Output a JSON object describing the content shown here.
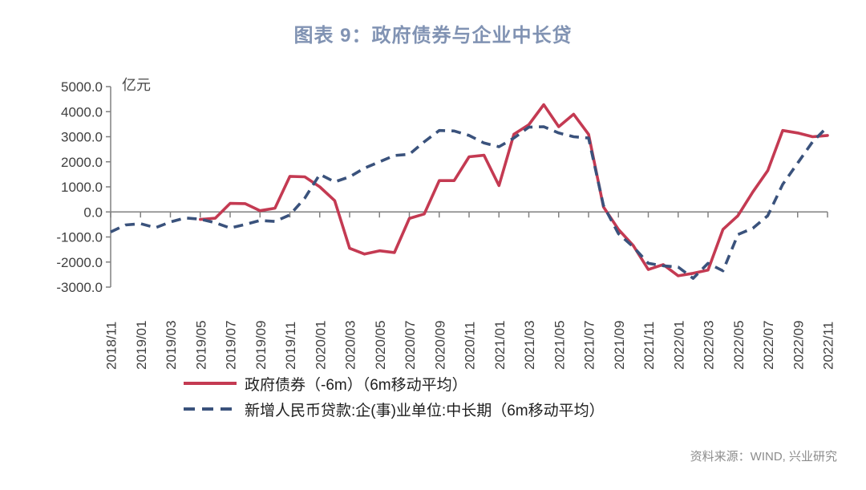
{
  "title": "图表 9：政府债券与企业中长贷",
  "source": "资料来源：WIND, 兴业研究",
  "colors": {
    "title": "#8193b3",
    "axis": "#808080",
    "tick_label": "#3f3f3f",
    "series_red": "#c43a52",
    "series_blue": "#3a527c",
    "source_text": "#8c8c8c"
  },
  "chart_data": {
    "type": "line",
    "unit_label": "亿元",
    "ylim": [
      -3000,
      5000
    ],
    "ytick_step": 1000,
    "ytick_labels": [
      "5000.0",
      "4000.0",
      "3000.0",
      "2000.0",
      "1000.0",
      "0.0",
      "-1000.0",
      "-2000.0",
      "-3000.0"
    ],
    "grid": false,
    "legend_position": "bottom-left",
    "x_label_interval": 2,
    "x": [
      "2018/11",
      "2018/12",
      "2019/01",
      "2019/02",
      "2019/03",
      "2019/04",
      "2019/05",
      "2019/06",
      "2019/07",
      "2019/08",
      "2019/09",
      "2019/10",
      "2019/11",
      "2019/12",
      "2020/01",
      "2020/02",
      "2020/03",
      "2020/04",
      "2020/05",
      "2020/06",
      "2020/07",
      "2020/08",
      "2020/09",
      "2020/10",
      "2020/11",
      "2020/12",
      "2021/01",
      "2021/02",
      "2021/03",
      "2021/04",
      "2021/05",
      "2021/06",
      "2021/07",
      "2021/08",
      "2021/09",
      "2021/10",
      "2021/11",
      "2021/12",
      "2022/01",
      "2022/02",
      "2022/03",
      "2022/04",
      "2022/05",
      "2022/06",
      "2022/07",
      "2022/08",
      "2022/09",
      "2022/10",
      "2022/11"
    ],
    "xtick_labels": [
      "2018/11",
      "2019/01",
      "2019/03",
      "2019/05",
      "2019/07",
      "2019/09",
      "2019/11",
      "2020/01",
      "2020/03",
      "2020/05",
      "2020/07",
      "2020/09",
      "2020/11",
      "2021/01",
      "2021/03",
      "2021/05",
      "2021/07",
      "2021/09",
      "2021/11",
      "2022/01",
      "2022/03",
      "2022/05",
      "2022/07",
      "2022/09",
      "2022/11"
    ],
    "series": [
      {
        "name": "政府债券（-6m）（6m移动平均）",
        "color": "#c43a52",
        "style": "solid",
        "values": [
          null,
          null,
          null,
          null,
          null,
          null,
          -300,
          -250,
          340,
          330,
          50,
          150,
          1420,
          1400,
          1000,
          450,
          -1450,
          -1680,
          -1550,
          -1620,
          -260,
          -80,
          1250,
          1250,
          2200,
          2260,
          1050,
          3100,
          3480,
          4280,
          3400,
          3900,
          3100,
          200,
          -700,
          -1350,
          -2300,
          -2100,
          -2550,
          -2450,
          -2320,
          -700,
          -150,
          800,
          1650,
          3250,
          3150,
          3000,
          3050
        ]
      },
      {
        "name": "新增人民币贷款:企(事)业单位:中长期（6m移动平均）",
        "color": "#3a527c",
        "style": "dashed",
        "values": [
          -800,
          -520,
          -470,
          -630,
          -400,
          -240,
          -290,
          -430,
          -640,
          -500,
          -340,
          -380,
          -120,
          550,
          1500,
          1200,
          1400,
          1750,
          2000,
          2250,
          2300,
          2800,
          3250,
          3230,
          3050,
          2750,
          2600,
          2950,
          3380,
          3400,
          3150,
          3000,
          2950,
          250,
          -870,
          -1400,
          -2050,
          -2150,
          -2200,
          -2650,
          -2050,
          -2350,
          -900,
          -650,
          -150,
          1100,
          1950,
          2800,
          3400
        ]
      }
    ]
  }
}
